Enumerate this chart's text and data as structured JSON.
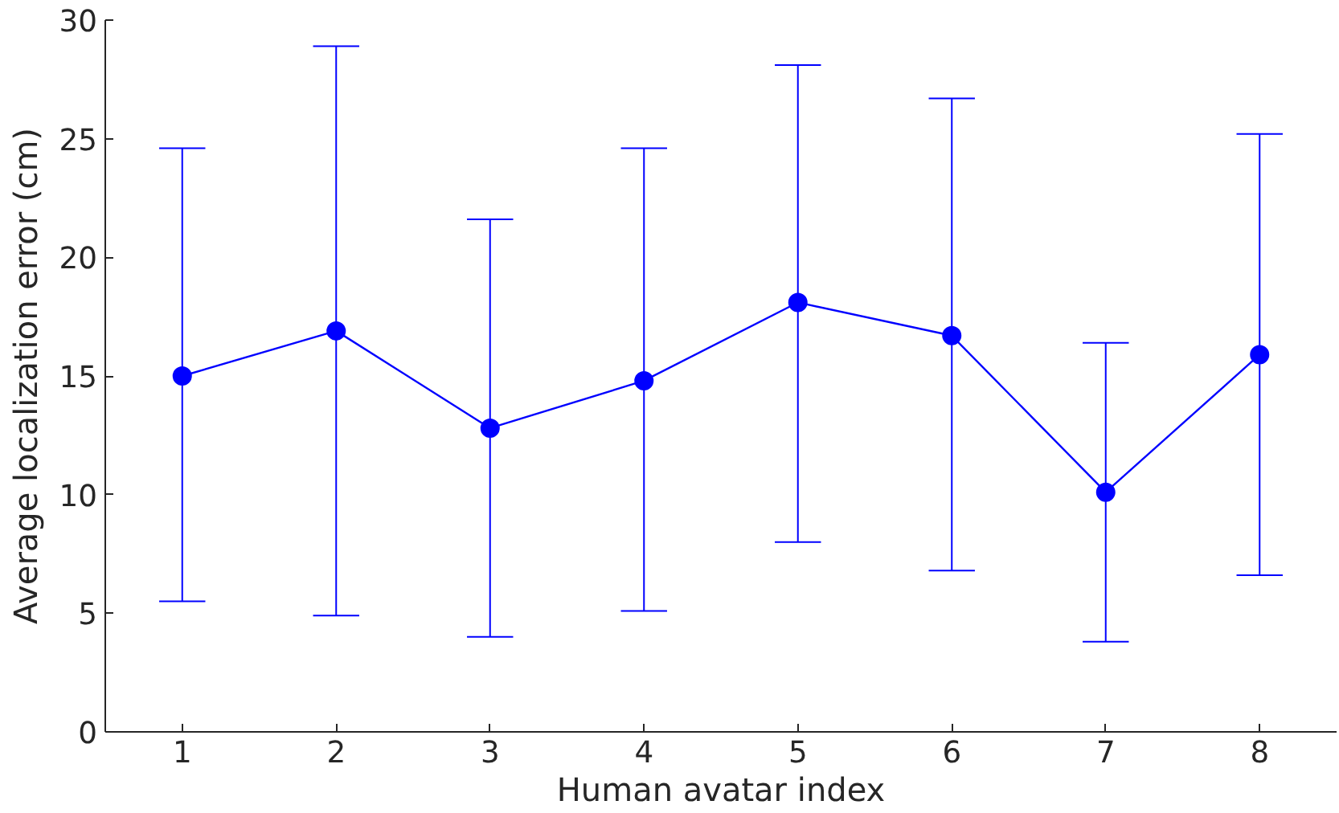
{
  "chart_data": {
    "type": "line",
    "xlabel": "Human avatar index",
    "ylabel": "Average localization error (cm)",
    "x": [
      1,
      2,
      3,
      4,
      5,
      6,
      7,
      8
    ],
    "series": [
      {
        "color": "#0000ff",
        "values": [
          15.0,
          16.9,
          12.8,
          14.8,
          18.1,
          16.7,
          10.1,
          15.9
        ],
        "errors": [
          [
            5.5,
            24.6
          ],
          [
            4.9,
            28.9
          ],
          [
            4.0,
            21.6
          ],
          [
            5.1,
            24.6
          ],
          [
            8.0,
            28.1
          ],
          [
            6.8,
            26.7
          ],
          [
            3.8,
            16.4
          ],
          [
            6.6,
            25.2
          ]
        ]
      }
    ],
    "xlim": [
      0.5,
      8.5
    ],
    "xticks": [
      1,
      2,
      3,
      4,
      5,
      6,
      7,
      8
    ],
    "ylim": [
      0,
      30
    ],
    "yticks": [
      0,
      5,
      10,
      15,
      20,
      25,
      30
    ],
    "marker": "circle",
    "line_style": "solid"
  }
}
